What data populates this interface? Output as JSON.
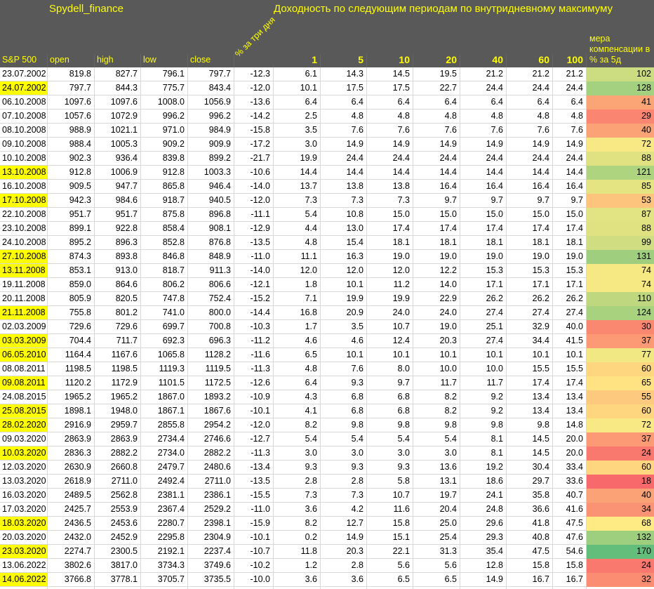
{
  "header": {
    "brand": "Spydell_finance",
    "title": "Доходность по следующим периодам по внутридневному максимуму",
    "rotated_label": "% за три дня",
    "col_date": "S&P 500",
    "cols_ohlc": [
      "open",
      "high",
      "low",
      "close"
    ],
    "cols_periods": [
      "1",
      "5",
      "10",
      "20",
      "40",
      "60",
      "100"
    ],
    "col_comp": "мера компенсации в % за 5д"
  },
  "colors": {
    "header_bg": "#595959",
    "header_text": "#FFFF00",
    "highlight_bg": "#FFFF00",
    "grid_line": "#D8D8D8",
    "scale_min_color": "#F8696B",
    "scale_mid_color": "#FFEB84",
    "scale_max_color": "#63BE7B"
  },
  "scale": {
    "min": 18,
    "mid": 68,
    "max": 170
  },
  "rows": [
    {
      "date": "23.07.2002",
      "highlighted": false,
      "open": "819.8",
      "high": "827.7",
      "low": "796.1",
      "close": "797.7",
      "pct_3d": "-12.3",
      "r1": "6.1",
      "r5": "14.3",
      "r10": "14.5",
      "r20": "19.5",
      "r40": "21.2",
      "r60": "21.2",
      "r100": "21.2",
      "compensation": 102
    },
    {
      "date": "24.07.2002",
      "highlighted": true,
      "open": "797.7",
      "high": "844.3",
      "low": "775.7",
      "close": "843.4",
      "pct_3d": "-12.0",
      "r1": "10.1",
      "r5": "17.5",
      "r10": "17.5",
      "r20": "22.7",
      "r40": "24.4",
      "r60": "24.4",
      "r100": "24.4",
      "compensation": 128
    },
    {
      "date": "06.10.2008",
      "highlighted": false,
      "open": "1097.6",
      "high": "1097.6",
      "low": "1008.0",
      "close": "1056.9",
      "pct_3d": "-13.6",
      "r1": "6.4",
      "r5": "6.4",
      "r10": "6.4",
      "r20": "6.4",
      "r40": "6.4",
      "r60": "6.4",
      "r100": "6.4",
      "compensation": 41
    },
    {
      "date": "07.10.2008",
      "highlighted": false,
      "open": "1057.6",
      "high": "1072.9",
      "low": "996.2",
      "close": "996.2",
      "pct_3d": "-14.2",
      "r1": "2.5",
      "r5": "4.8",
      "r10": "4.8",
      "r20": "4.8",
      "r40": "4.8",
      "r60": "4.8",
      "r100": "4.8",
      "compensation": 29
    },
    {
      "date": "08.10.2008",
      "highlighted": false,
      "open": "988.9",
      "high": "1021.1",
      "low": "971.0",
      "close": "984.9",
      "pct_3d": "-15.8",
      "r1": "3.5",
      "r5": "7.6",
      "r10": "7.6",
      "r20": "7.6",
      "r40": "7.6",
      "r60": "7.6",
      "r100": "7.6",
      "compensation": 40
    },
    {
      "date": "09.10.2008",
      "highlighted": false,
      "open": "988.4",
      "high": "1005.3",
      "low": "909.2",
      "close": "909.9",
      "pct_3d": "-17.2",
      "r1": "3.0",
      "r5": "14.9",
      "r10": "14.9",
      "r20": "14.9",
      "r40": "14.9",
      "r60": "14.9",
      "r100": "14.9",
      "compensation": 72
    },
    {
      "date": "10.10.2008",
      "highlighted": false,
      "open": "902.3",
      "high": "936.4",
      "low": "839.8",
      "close": "899.2",
      "pct_3d": "-21.7",
      "r1": "19.9",
      "r5": "24.4",
      "r10": "24.4",
      "r20": "24.4",
      "r40": "24.4",
      "r60": "24.4",
      "r100": "24.4",
      "compensation": 88
    },
    {
      "date": "13.10.2008",
      "highlighted": true,
      "open": "912.8",
      "high": "1006.9",
      "low": "912.8",
      "close": "1003.3",
      "pct_3d": "-10.6",
      "r1": "14.4",
      "r5": "14.4",
      "r10": "14.4",
      "r20": "14.4",
      "r40": "14.4",
      "r60": "14.4",
      "r100": "14.4",
      "compensation": 121
    },
    {
      "date": "16.10.2008",
      "highlighted": false,
      "open": "909.5",
      "high": "947.7",
      "low": "865.8",
      "close": "946.4",
      "pct_3d": "-14.0",
      "r1": "13.7",
      "r5": "13.8",
      "r10": "13.8",
      "r20": "16.4",
      "r40": "16.4",
      "r60": "16.4",
      "r100": "16.4",
      "compensation": 85
    },
    {
      "date": "17.10.2008",
      "highlighted": true,
      "open": "942.3",
      "high": "984.6",
      "low": "918.7",
      "close": "940.5",
      "pct_3d": "-12.0",
      "r1": "7.3",
      "r5": "7.3",
      "r10": "7.3",
      "r20": "9.7",
      "r40": "9.7",
      "r60": "9.7",
      "r100": "9.7",
      "compensation": 53
    },
    {
      "date": "22.10.2008",
      "highlighted": false,
      "open": "951.7",
      "high": "951.7",
      "low": "875.8",
      "close": "896.8",
      "pct_3d": "-11.1",
      "r1": "5.4",
      "r5": "10.8",
      "r10": "15.0",
      "r20": "15.0",
      "r40": "15.0",
      "r60": "15.0",
      "r100": "15.0",
      "compensation": 87
    },
    {
      "date": "23.10.2008",
      "highlighted": false,
      "open": "899.1",
      "high": "922.8",
      "low": "858.4",
      "close": "908.1",
      "pct_3d": "-12.9",
      "r1": "4.4",
      "r5": "13.0",
      "r10": "17.4",
      "r20": "17.4",
      "r40": "17.4",
      "r60": "17.4",
      "r100": "17.4",
      "compensation": 88
    },
    {
      "date": "24.10.2008",
      "highlighted": false,
      "open": "895.2",
      "high": "896.3",
      "low": "852.8",
      "close": "876.8",
      "pct_3d": "-13.5",
      "r1": "4.8",
      "r5": "15.4",
      "r10": "18.1",
      "r20": "18.1",
      "r40": "18.1",
      "r60": "18.1",
      "r100": "18.1",
      "compensation": 99
    },
    {
      "date": "27.10.2008",
      "highlighted": true,
      "open": "874.3",
      "high": "893.8",
      "low": "846.8",
      "close": "848.9",
      "pct_3d": "-11.0",
      "r1": "11.1",
      "r5": "16.3",
      "r10": "19.0",
      "r20": "19.0",
      "r40": "19.0",
      "r60": "19.0",
      "r100": "19.0",
      "compensation": 131
    },
    {
      "date": "13.11.2008",
      "highlighted": true,
      "open": "853.1",
      "high": "913.0",
      "low": "818.7",
      "close": "911.3",
      "pct_3d": "-14.0",
      "r1": "12.0",
      "r5": "12.0",
      "r10": "12.0",
      "r20": "12.2",
      "r40": "15.3",
      "r60": "15.3",
      "r100": "15.3",
      "compensation": 74
    },
    {
      "date": "19.11.2008",
      "highlighted": false,
      "open": "859.0",
      "high": "864.6",
      "low": "806.2",
      "close": "806.6",
      "pct_3d": "-12.1",
      "r1": "1.8",
      "r5": "10.1",
      "r10": "11.2",
      "r20": "14.0",
      "r40": "17.1",
      "r60": "17.1",
      "r100": "17.1",
      "compensation": 74
    },
    {
      "date": "20.11.2008",
      "highlighted": false,
      "open": "805.9",
      "high": "820.5",
      "low": "747.8",
      "close": "752.4",
      "pct_3d": "-15.2",
      "r1": "7.1",
      "r5": "19.9",
      "r10": "19.9",
      "r20": "22.9",
      "r40": "26.2",
      "r60": "26.2",
      "r100": "26.2",
      "compensation": 110
    },
    {
      "date": "21.11.2008",
      "highlighted": true,
      "open": "755.8",
      "high": "801.2",
      "low": "741.0",
      "close": "800.0",
      "pct_3d": "-14.4",
      "r1": "16.8",
      "r5": "20.9",
      "r10": "24.0",
      "r20": "24.0",
      "r40": "27.4",
      "r60": "27.4",
      "r100": "27.4",
      "compensation": 124
    },
    {
      "date": "02.03.2009",
      "highlighted": false,
      "open": "729.6",
      "high": "729.6",
      "low": "699.7",
      "close": "700.8",
      "pct_3d": "-10.3",
      "r1": "1.7",
      "r5": "3.5",
      "r10": "10.7",
      "r20": "19.0",
      "r40": "25.1",
      "r60": "32.9",
      "r100": "40.0",
      "compensation": 30
    },
    {
      "date": "03.03.2009",
      "highlighted": true,
      "open": "704.4",
      "high": "711.7",
      "low": "692.3",
      "close": "696.3",
      "pct_3d": "-11.2",
      "r1": "4.6",
      "r5": "4.6",
      "r10": "12.4",
      "r20": "20.3",
      "r40": "27.4",
      "r60": "34.4",
      "r100": "41.5",
      "compensation": 37
    },
    {
      "date": "06.05.2010",
      "highlighted": true,
      "open": "1164.4",
      "high": "1167.6",
      "low": "1065.8",
      "close": "1128.2",
      "pct_3d": "-11.6",
      "r1": "6.5",
      "r5": "10.1",
      "r10": "10.1",
      "r20": "10.1",
      "r40": "10.1",
      "r60": "10.1",
      "r100": "10.1",
      "compensation": 77
    },
    {
      "date": "08.08.2011",
      "highlighted": false,
      "open": "1198.5",
      "high": "1198.5",
      "low": "1119.3",
      "close": "1119.5",
      "pct_3d": "-11.3",
      "r1": "4.8",
      "r5": "7.6",
      "r10": "8.0",
      "r20": "10.0",
      "r40": "10.0",
      "r60": "15.5",
      "r100": "15.5",
      "compensation": 60
    },
    {
      "date": "09.08.2011",
      "highlighted": true,
      "open": "1120.2",
      "high": "1172.9",
      "low": "1101.5",
      "close": "1172.5",
      "pct_3d": "-12.6",
      "r1": "6.4",
      "r5": "9.3",
      "r10": "9.7",
      "r20": "11.7",
      "r40": "11.7",
      "r60": "17.4",
      "r100": "17.4",
      "compensation": 65
    },
    {
      "date": "24.08.2015",
      "highlighted": false,
      "open": "1965.2",
      "high": "1965.2",
      "low": "1867.0",
      "close": "1893.2",
      "pct_3d": "-10.9",
      "r1": "4.3",
      "r5": "6.8",
      "r10": "6.8",
      "r20": "8.2",
      "r40": "9.2",
      "r60": "13.4",
      "r100": "13.4",
      "compensation": 55
    },
    {
      "date": "25.08.2015",
      "highlighted": true,
      "open": "1898.1",
      "high": "1948.0",
      "low": "1867.1",
      "close": "1867.6",
      "pct_3d": "-10.1",
      "r1": "4.1",
      "r5": "6.8",
      "r10": "6.8",
      "r20": "8.2",
      "r40": "9.2",
      "r60": "13.4",
      "r100": "13.4",
      "compensation": 60
    },
    {
      "date": "28.02.2020",
      "highlighted": true,
      "open": "2916.9",
      "high": "2959.7",
      "low": "2855.8",
      "close": "2954.2",
      "pct_3d": "-12.0",
      "r1": "8.2",
      "r5": "9.8",
      "r10": "9.8",
      "r20": "9.8",
      "r40": "9.8",
      "r60": "9.8",
      "r100": "14.8",
      "compensation": 72
    },
    {
      "date": "09.03.2020",
      "highlighted": false,
      "open": "2863.9",
      "high": "2863.9",
      "low": "2734.4",
      "close": "2746.6",
      "pct_3d": "-12.7",
      "r1": "5.4",
      "r5": "5.4",
      "r10": "5.4",
      "r20": "5.4",
      "r40": "8.1",
      "r60": "14.5",
      "r100": "20.0",
      "compensation": 37
    },
    {
      "date": "10.03.2020",
      "highlighted": true,
      "open": "2836.3",
      "high": "2882.2",
      "low": "2734.0",
      "close": "2882.2",
      "pct_3d": "-11.3",
      "r1": "3.0",
      "r5": "3.0",
      "r10": "3.0",
      "r20": "3.0",
      "r40": "8.1",
      "r60": "14.5",
      "r100": "20.0",
      "compensation": 24
    },
    {
      "date": "12.03.2020",
      "highlighted": false,
      "open": "2630.9",
      "high": "2660.8",
      "low": "2479.7",
      "close": "2480.6",
      "pct_3d": "-13.4",
      "r1": "9.3",
      "r5": "9.3",
      "r10": "9.3",
      "r20": "13.6",
      "r40": "19.2",
      "r60": "30.4",
      "r100": "33.4",
      "compensation": 60
    },
    {
      "date": "13.03.2020",
      "highlighted": false,
      "open": "2618.9",
      "high": "2711.0",
      "low": "2492.4",
      "close": "2711.0",
      "pct_3d": "-13.5",
      "r1": "2.8",
      "r5": "2.8",
      "r10": "5.8",
      "r20": "13.1",
      "r40": "18.6",
      "r60": "29.7",
      "r100": "33.6",
      "compensation": 18
    },
    {
      "date": "16.03.2020",
      "highlighted": false,
      "open": "2489.5",
      "high": "2562.8",
      "low": "2381.1",
      "close": "2386.1",
      "pct_3d": "-15.5",
      "r1": "7.3",
      "r5": "7.3",
      "r10": "10.7",
      "r20": "19.7",
      "r40": "24.1",
      "r60": "35.8",
      "r100": "40.7",
      "compensation": 40
    },
    {
      "date": "17.03.2020",
      "highlighted": false,
      "open": "2425.7",
      "high": "2553.9",
      "low": "2367.4",
      "close": "2529.2",
      "pct_3d": "-11.0",
      "r1": "3.6",
      "r5": "4.2",
      "r10": "11.6",
      "r20": "20.4",
      "r40": "24.8",
      "r60": "36.6",
      "r100": "41.6",
      "compensation": 34
    },
    {
      "date": "18.03.2020",
      "highlighted": true,
      "open": "2436.5",
      "high": "2453.6",
      "low": "2280.7",
      "close": "2398.1",
      "pct_3d": "-15.9",
      "r1": "8.2",
      "r5": "12.7",
      "r10": "15.8",
      "r20": "25.0",
      "r40": "29.6",
      "r60": "41.8",
      "r100": "47.5",
      "compensation": 68
    },
    {
      "date": "20.03.2020",
      "highlighted": false,
      "open": "2432.0",
      "high": "2452.9",
      "low": "2295.8",
      "close": "2304.9",
      "pct_3d": "-10.1",
      "r1": "0.2",
      "r5": "14.9",
      "r10": "15.1",
      "r20": "25.4",
      "r40": "29.3",
      "r60": "40.8",
      "r100": "47.6",
      "compensation": 132
    },
    {
      "date": "23.03.2020",
      "highlighted": true,
      "open": "2274.7",
      "high": "2300.5",
      "low": "2192.1",
      "close": "2237.4",
      "pct_3d": "-10.7",
      "r1": "11.8",
      "r5": "20.3",
      "r10": "22.1",
      "r20": "31.3",
      "r40": "35.4",
      "r60": "47.5",
      "r100": "54.6",
      "compensation": 170
    },
    {
      "date": "13.06.2022",
      "highlighted": false,
      "open": "3802.6",
      "high": "3817.0",
      "low": "3734.3",
      "close": "3749.6",
      "pct_3d": "-10.2",
      "r1": "1.2",
      "r5": "2.8",
      "r10": "5.6",
      "r20": "5.6",
      "r40": "12.8",
      "r60": "15.8",
      "r100": "15.8",
      "compensation": 24
    },
    {
      "date": "14.06.2022",
      "highlighted": true,
      "open": "3766.8",
      "high": "3778.1",
      "low": "3705.7",
      "close": "3735.5",
      "pct_3d": "-10.0",
      "r1": "3.6",
      "r5": "3.6",
      "r10": "6.5",
      "r20": "6.5",
      "r40": "14.9",
      "r60": "16.7",
      "r100": "16.7",
      "compensation": 32
    }
  ]
}
